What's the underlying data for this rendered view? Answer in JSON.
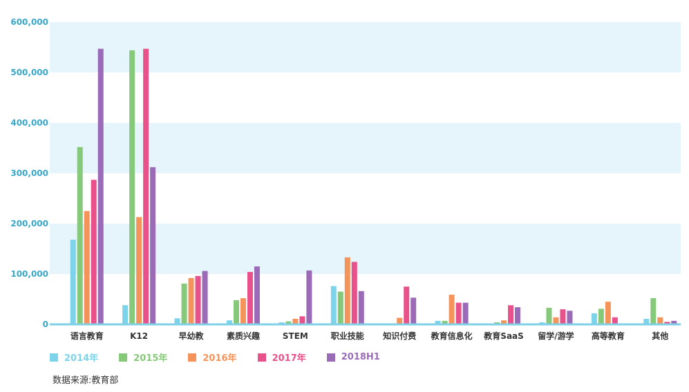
{
  "chart_data": {
    "type": "bar",
    "categories": [
      "语言教育",
      "K12",
      "早幼教",
      "素质兴趣",
      "STEM",
      "职业技能",
      "知识付费",
      "教育信息化",
      "教育SaaS",
      "留学/游学",
      "高等教育",
      "其他"
    ],
    "series": [
      {
        "name": "2014年",
        "color": "#7dd3ea",
        "values": [
          168000,
          38000,
          12000,
          8000,
          4000,
          76000,
          1000,
          7000,
          1000,
          4000,
          22000,
          11000
        ]
      },
      {
        "name": "2015年",
        "color": "#86c97a",
        "values": [
          352000,
          544000,
          81000,
          48000,
          6000,
          65000,
          1000,
          7000,
          4000,
          33000,
          31000,
          52000
        ]
      },
      {
        "name": "2016年",
        "color": "#f5945a",
        "values": [
          225000,
          213000,
          92000,
          52000,
          11000,
          133000,
          13000,
          59000,
          8000,
          14000,
          45000,
          14000
        ]
      },
      {
        "name": "2017年",
        "color": "#e8518a",
        "values": [
          287000,
          547000,
          96000,
          104000,
          16000,
          124000,
          75000,
          43000,
          38000,
          30000,
          14000,
          5000
        ]
      },
      {
        "name": "2018H1",
        "color": "#9b6bb8",
        "values": [
          547000,
          312000,
          106000,
          115000,
          107000,
          66000,
          53000,
          43000,
          34000,
          27000,
          2000,
          7000
        ]
      }
    ],
    "ylim": [
      0,
      600000
    ],
    "yticks": [
      "0",
      "100,000",
      "200,000",
      "300,000",
      "400,000",
      "500,000",
      "600,000"
    ],
    "grid": "alternating bands",
    "legend_position": "bottom-left"
  },
  "source_note": "数据来源:教育部"
}
